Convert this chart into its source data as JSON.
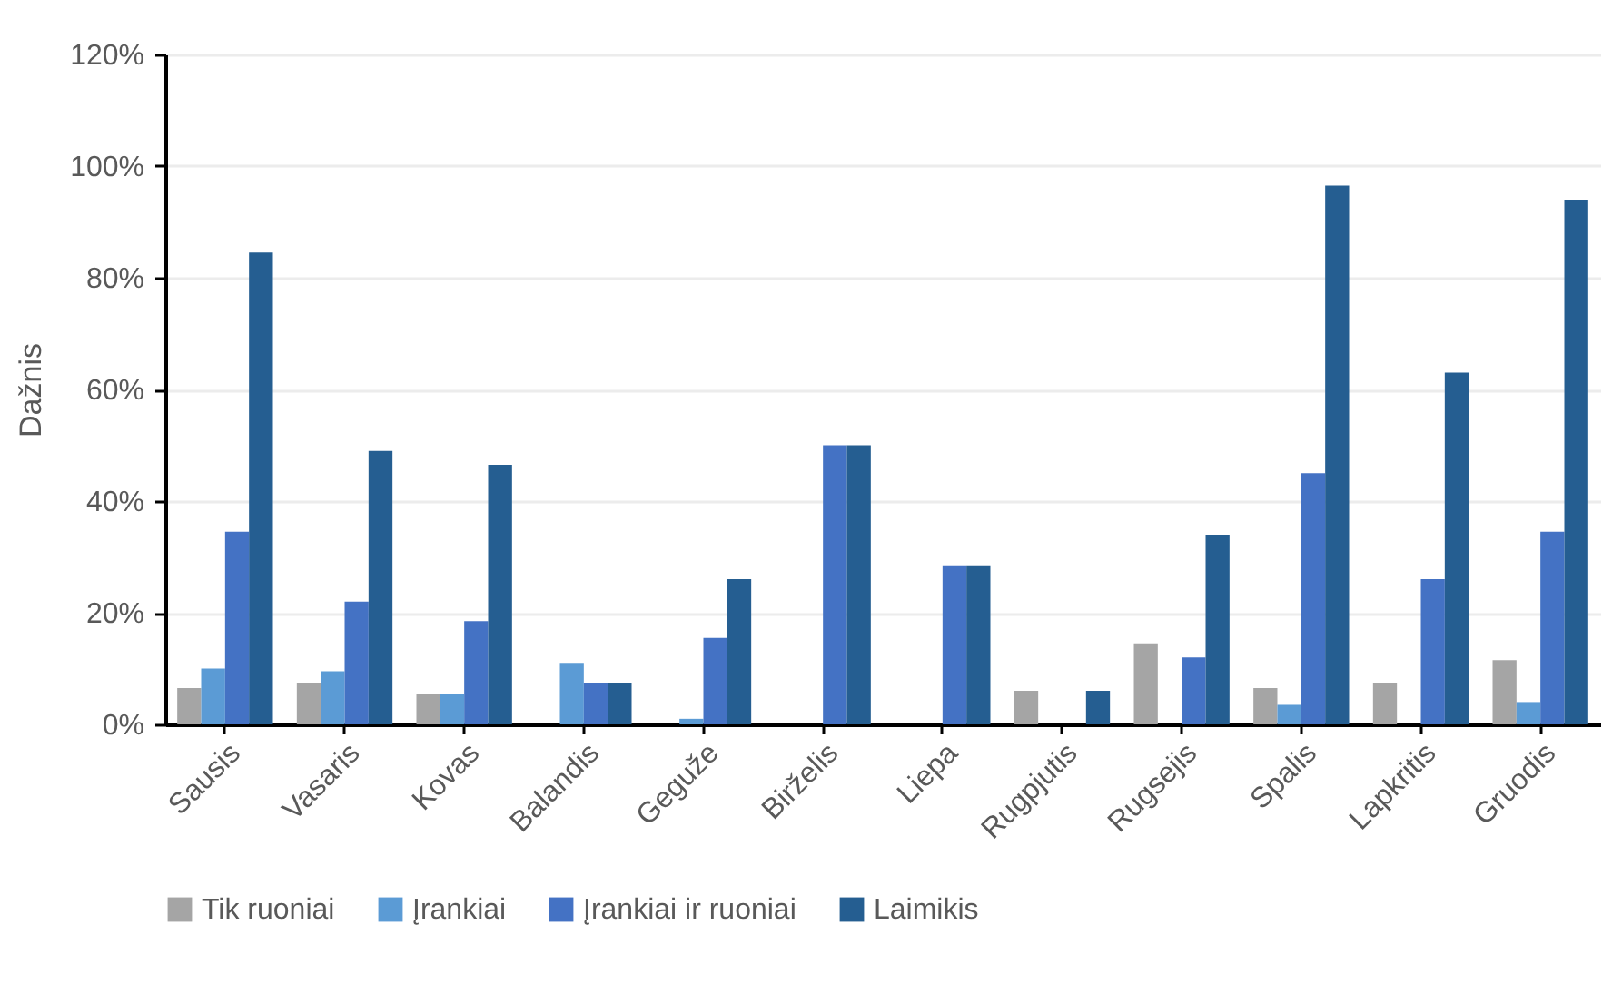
{
  "chart_data": {
    "type": "bar",
    "ylabel": "Dažnis",
    "categories": [
      "Sausis",
      "Vasaris",
      "Kovas",
      "Balandis",
      "Geguže",
      "Birželis",
      "Liepa",
      "Rugpjutis",
      "Rugsejis",
      "Spalis",
      "Lapkritis",
      "Gruodis"
    ],
    "series": [
      {
        "name": "Tik ruoniai",
        "color": "#a5a5a5",
        "values": [
          6.5,
          7.5,
          5.5,
          0,
          0,
          0,
          0,
          6,
          14.5,
          6.5,
          7.5,
          11.5
        ]
      },
      {
        "name": "Įrankiai",
        "color": "#5b9bd5",
        "values": [
          10,
          9.5,
          5.5,
          11,
          1,
          0,
          0,
          0,
          0,
          3.5,
          0,
          4
        ]
      },
      {
        "name": "Įrankiai ir ruoniai",
        "color": "#4472c4",
        "values": [
          34.5,
          22,
          18.5,
          7.5,
          15.5,
          50,
          28.5,
          0,
          12,
          45,
          26,
          34.5
        ]
      },
      {
        "name": "Laimikis",
        "color": "#255e91",
        "values": [
          84.5,
          49,
          46.5,
          7.5,
          26,
          50,
          28.5,
          6,
          34,
          96.5,
          63,
          94
        ]
      }
    ],
    "ylim": [
      0,
      120
    ],
    "yticks": [
      {
        "value": 0,
        "label": "0%"
      },
      {
        "value": 20,
        "label": "20%"
      },
      {
        "value": 40,
        "label": "40%"
      },
      {
        "value": 60,
        "label": "60%"
      },
      {
        "value": 80,
        "label": "80%"
      },
      {
        "value": 100,
        "label": "100%"
      },
      {
        "value": 120,
        "label": "120%"
      }
    ],
    "grid": "y",
    "legend": "bottom"
  }
}
